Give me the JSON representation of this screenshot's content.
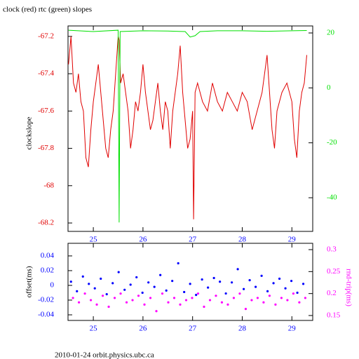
{
  "chart_data": [
    {
      "type": "line",
      "title": "clock (red) rtc (green) slopes",
      "ylabel": "clockslope",
      "xlim": [
        24.49,
        29.42
      ],
      "xticks": [
        25,
        26,
        27,
        28,
        29
      ],
      "ylim": [
        -68.245,
        -67.144
      ],
      "yticks": [
        -67.2,
        -67.4,
        -67.6,
        -67.8,
        -68,
        -68.2
      ],
      "y2lim": [
        -52.25,
        22.55
      ],
      "y2ticks": [
        20,
        0,
        -20,
        -40
      ],
      "series": [
        {
          "color": "#e00000",
          "x": [
            24.5,
            24.55,
            24.6,
            24.65,
            24.7,
            24.75,
            24.8,
            24.85,
            24.9,
            24.95,
            25.0,
            25.05,
            25.1,
            25.15,
            25.2,
            25.25,
            25.3,
            25.35,
            25.4,
            25.45,
            25.5,
            25.52,
            25.55,
            25.6,
            25.65,
            25.7,
            25.75,
            25.8,
            25.85,
            25.9,
            25.95,
            26.0,
            26.05,
            26.1,
            26.15,
            26.2,
            26.25,
            26.3,
            26.35,
            26.4,
            26.45,
            26.5,
            26.55,
            26.6,
            26.65,
            26.7,
            26.75,
            26.8,
            26.85,
            26.9,
            26.95,
            27.0,
            27.02,
            27.05,
            27.1,
            27.2,
            27.3,
            27.4,
            27.5,
            27.6,
            27.7,
            27.8,
            27.9,
            28.0,
            28.1,
            28.2,
            28.3,
            28.4,
            28.5,
            28.55,
            28.6,
            28.65,
            28.7,
            28.8,
            28.9,
            29.0,
            29.05,
            29.1,
            29.15,
            29.2,
            29.25,
            29.3
          ],
          "values": [
            -67.35,
            -67.2,
            -67.45,
            -67.5,
            -67.4,
            -67.55,
            -67.6,
            -67.85,
            -67.9,
            -67.7,
            -67.55,
            -67.45,
            -67.35,
            -67.5,
            -67.65,
            -67.8,
            -67.85,
            -67.7,
            -67.6,
            -67.4,
            -67.2,
            -67.22,
            -67.45,
            -67.4,
            -67.5,
            -67.6,
            -67.8,
            -67.7,
            -67.55,
            -67.6,
            -67.5,
            -67.35,
            -67.5,
            -67.6,
            -67.7,
            -67.65,
            -67.55,
            -67.45,
            -67.6,
            -67.7,
            -67.55,
            -67.6,
            -67.8,
            -67.6,
            -67.5,
            -67.4,
            -67.25,
            -67.5,
            -67.65,
            -67.8,
            -67.75,
            -67.6,
            -68.18,
            -67.5,
            -67.45,
            -67.55,
            -67.6,
            -67.45,
            -67.55,
            -67.6,
            -67.5,
            -67.55,
            -67.6,
            -67.5,
            -67.55,
            -67.7,
            -67.6,
            -67.5,
            -67.3,
            -67.5,
            -67.7,
            -67.8,
            -67.6,
            -67.5,
            -67.45,
            -67.55,
            -67.75,
            -67.85,
            -67.6,
            -67.5,
            -67.45,
            -67.3
          ]
        },
        {
          "color": "#00e000",
          "axis": "y2",
          "x": [
            24.5,
            25.0,
            25.5,
            25.52,
            25.54,
            26.0,
            26.5,
            26.85,
            26.95,
            27.05,
            27.15,
            27.5,
            28.0,
            28.5,
            29.0,
            29.3
          ],
          "values": [
            21,
            20.5,
            21,
            -49,
            20.5,
            20.8,
            20.7,
            20.5,
            18.5,
            19,
            20.5,
            20.8,
            20.8,
            20.6,
            20.8,
            20.9
          ]
        }
      ]
    },
    {
      "type": "scatter",
      "ylabel": "offset(ms)",
      "y2label": "rnd-trip(ms)",
      "xlim": [
        24.49,
        29.42
      ],
      "xticks": [
        25,
        26,
        27,
        28,
        29
      ],
      "ylim": [
        -0.0476,
        0.0571
      ],
      "yticks": [
        0.04,
        0.02,
        0,
        -0.02,
        -0.04
      ],
      "y2lim": [
        0.1388,
        0.3144
      ],
      "y2ticks": [
        0.3,
        0.25,
        0.2,
        0.15
      ],
      "series": [
        {
          "color": "#0000ff",
          "x": [
            24.55,
            24.67,
            24.79,
            24.91,
            25.03,
            25.15,
            25.27,
            25.39,
            25.51,
            25.63,
            25.75,
            25.87,
            25.99,
            26.11,
            26.23,
            26.35,
            26.47,
            26.59,
            26.71,
            26.83,
            26.95,
            27.07,
            27.19,
            27.31,
            27.43,
            27.55,
            27.67,
            27.79,
            27.91,
            28.03,
            28.15,
            28.27,
            28.39,
            28.51,
            28.63,
            28.75,
            28.87,
            28.99,
            29.11,
            29.23
          ],
          "values": [
            0.005,
            -0.008,
            0.012,
            0.002,
            -0.004,
            0.009,
            -0.012,
            0.003,
            0.018,
            -0.006,
            0.001,
            0.011,
            -0.01,
            0.004,
            -0.002,
            0.014,
            -0.007,
            0.006,
            0.03,
            -0.009,
            0.002,
            -0.013,
            0.008,
            -0.003,
            0.01,
            0.005,
            -0.011,
            0.004,
            0.022,
            -0.005,
            0.007,
            -0.002,
            0.013,
            -0.008,
            0.003,
            0.009,
            -0.004,
            0.006,
            -0.01,
            0.002
          ]
        },
        {
          "color": "#ff00ff",
          "axis": "y2",
          "x": [
            24.59,
            24.71,
            24.83,
            24.95,
            25.07,
            25.19,
            25.31,
            25.43,
            25.55,
            25.67,
            25.79,
            25.91,
            26.03,
            26.15,
            26.27,
            26.39,
            26.51,
            26.63,
            26.75,
            26.87,
            26.99,
            27.11,
            27.23,
            27.35,
            27.47,
            27.59,
            27.71,
            27.83,
            27.95,
            28.07,
            28.19,
            28.31,
            28.43,
            28.55,
            28.67,
            28.79,
            28.91,
            29.03,
            29.15,
            29.27
          ],
          "values": [
            0.19,
            0.18,
            0.2,
            0.185,
            0.175,
            0.195,
            0.17,
            0.19,
            0.2,
            0.18,
            0.185,
            0.195,
            0.175,
            0.19,
            0.16,
            0.2,
            0.18,
            0.19,
            0.175,
            0.185,
            0.19,
            0.2,
            0.17,
            0.185,
            0.195,
            0.18,
            0.175,
            0.19,
            0.2,
            0.165,
            0.185,
            0.19,
            0.18,
            0.195,
            0.175,
            0.19,
            0.185,
            0.2,
            0.18,
            0.19
          ]
        }
      ]
    }
  ],
  "footer": "2010-01-24 orbit.physics.ubc.ca"
}
